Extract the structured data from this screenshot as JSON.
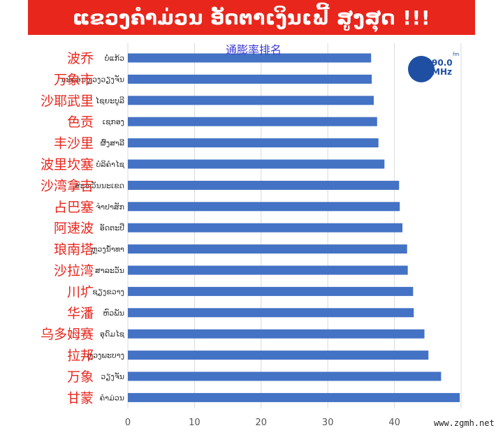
{
  "banner": {
    "title": "ແຂວງຄຳມ່ວນ ອັດຕາເງິນເຟີ້ ສູງສຸດ !!!",
    "color": "#e8261c"
  },
  "logo": {
    "number": "90.0",
    "unit": "MHz",
    "fm": "fm"
  },
  "watermark": "www.zgmh.net",
  "chart_data": {
    "type": "bar",
    "orientation": "horizontal",
    "title": "通膨率排名",
    "bar_color": "#4472c4",
    "label_color_chinese": "#e8261c",
    "categories": [
      {
        "zh": "波乔",
        "lo": "ບໍ່ແກ້ວ"
      },
      {
        "zh": "万象市",
        "lo": "ນະຄອນຫຼວງວຽງຈັນ"
      },
      {
        "zh": "沙耶武里",
        "lo": "ໄຊຍະບູລີ"
      },
      {
        "zh": "色贡",
        "lo": "ເຊກອງ"
      },
      {
        "zh": "丰沙里",
        "lo": "ຜົ້ງສາລີ"
      },
      {
        "zh": "波里坎塞",
        "lo": "ບໍລິຄຳໄຊ"
      },
      {
        "zh": "沙湾拿吉",
        "lo": "ສະຫວັນນະເຂດ"
      },
      {
        "zh": "占巴塞",
        "lo": "ຈຳປາສັກ"
      },
      {
        "zh": "阿速波",
        "lo": "ອັດຕະປື"
      },
      {
        "zh": "琅南塔",
        "lo": "ຫຼວງນ້ຳທາ"
      },
      {
        "zh": "沙拉湾",
        "lo": "ສາລະວັນ"
      },
      {
        "zh": "川圹",
        "lo": "ຊຽງຂວາງ"
      },
      {
        "zh": "华潘",
        "lo": "ຫົວພັນ"
      },
      {
        "zh": "乌多姆赛",
        "lo": "ອຸດົມໄຊ"
      },
      {
        "zh": "拉邦",
        "lo": "ຫຼວງພະບາງ"
      },
      {
        "zh": "万象",
        "lo": "ວຽງຈັນ"
      },
      {
        "zh": "甘蒙",
        "lo": "ຄຳມ່ວນ"
      }
    ],
    "values": [
      36.5,
      36.6,
      36.9,
      37.4,
      37.6,
      38.5,
      40.7,
      40.8,
      41.2,
      41.9,
      42.0,
      42.8,
      42.9,
      44.5,
      45.1,
      47.0,
      49.8
    ],
    "xticks": [
      "0",
      "10",
      "20",
      "30",
      "40",
      "50"
    ],
    "xlim": [
      0,
      50
    ],
    "grid": true,
    "legend": "none"
  }
}
